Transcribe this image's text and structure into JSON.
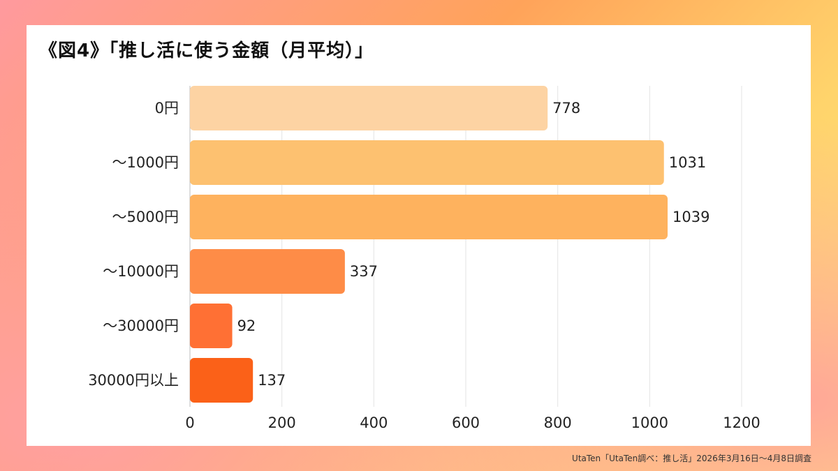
{
  "title": "《図4》「推し活に使う金額（月平均）」",
  "footer": "UtaTen「UtaTen調べ：推し活」2026年3月16日～4月8日調査",
  "chart_data": {
    "type": "bar",
    "orientation": "horizontal",
    "categories": [
      "0円",
      "～1000円",
      "～5000円",
      "～10000円",
      "～30000円",
      "30000円以上"
    ],
    "values": [
      778,
      1031,
      1039,
      337,
      92,
      137
    ],
    "colors": [
      "#fdd3a3",
      "#fdc170",
      "#feb25e",
      "#fe8c47",
      "#ff7034",
      "#fb6118"
    ],
    "xlim": [
      0,
      1200
    ],
    "xticks": [
      0,
      200,
      400,
      600,
      800,
      1000,
      1200
    ],
    "grid": true,
    "legend": false
  }
}
